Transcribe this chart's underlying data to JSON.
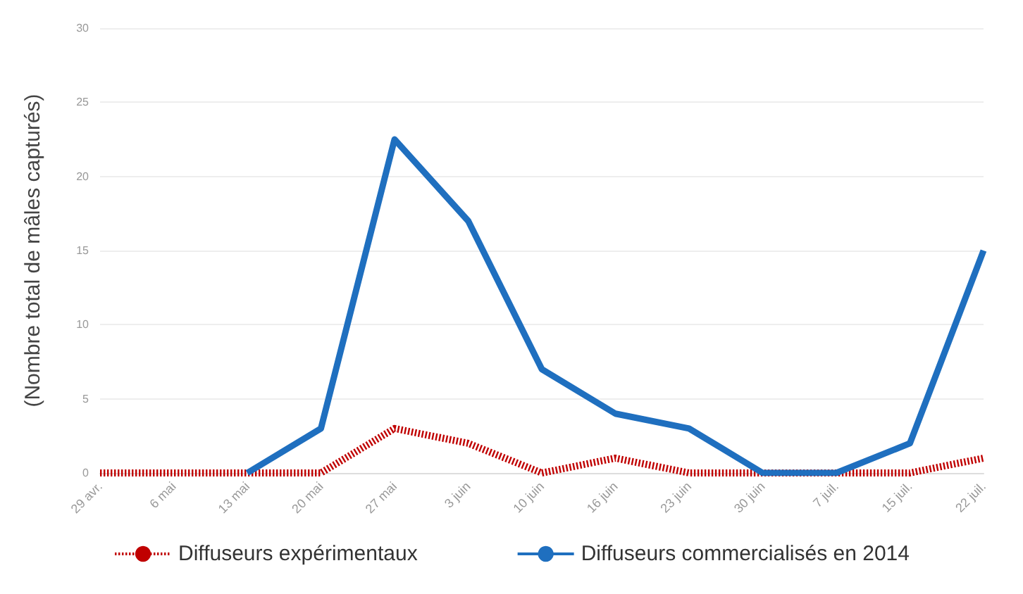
{
  "chart_data": {
    "type": "line",
    "ylabel": "(Nombre total de mâles capturés)",
    "categories": [
      "29 avr.",
      "6 mai",
      "13 mai",
      "20 mai",
      "27 mai",
      "3 juin",
      "10 juin",
      "16 juin",
      "23 juin",
      "30 juin",
      "7 juil.",
      "15 juil.",
      "22 juil."
    ],
    "series": [
      {
        "name": "Diffuseurs expérimentaux",
        "color": "#c00000",
        "line_style": "dotted",
        "values": [
          0,
          0,
          0,
          0,
          3,
          2,
          0,
          1,
          0,
          0,
          0,
          0,
          1
        ]
      },
      {
        "name": "Diffuseurs commercialisés en 2014",
        "color": "#1f6fbf",
        "line_style": "solid",
        "values": [
          null,
          null,
          0,
          3,
          22.5,
          17,
          7,
          4,
          3,
          0,
          0,
          2,
          15
        ]
      }
    ],
    "ylim": [
      0,
      30
    ],
    "yticks": [
      0,
      5,
      10,
      15,
      20,
      25,
      30
    ],
    "grid": "y",
    "legend": "bottom",
    "marker": "none"
  }
}
